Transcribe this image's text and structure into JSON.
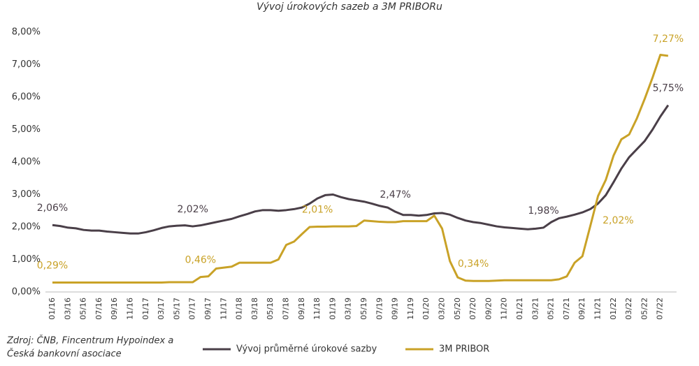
{
  "chart_data": {
    "type": "line",
    "title": "Vývoj úrokových sazeb a 3M PRIBORu",
    "source": [
      "Zdroj: ČNB, Fincentrum Hypoindex a",
      "Česká bankovní asociace"
    ],
    "categories": [
      "01/16",
      null,
      "03/16",
      null,
      "05/16",
      null,
      "07/16",
      null,
      "09/16",
      null,
      "11/16",
      null,
      "01/17",
      null,
      "03/17",
      null,
      "05/17",
      null,
      "07/17",
      null,
      "09/17",
      null,
      "11/17",
      null,
      "01/18",
      null,
      "03/18",
      null,
      "05/18",
      null,
      "07/18",
      null,
      "09/18",
      null,
      "11/18",
      null,
      "01/19",
      null,
      "03/19",
      null,
      "05/19",
      null,
      "07/19",
      null,
      "09/19",
      null,
      "11/19",
      null,
      "01/20",
      null,
      "03/20",
      null,
      "05/20",
      null,
      "07/20",
      null,
      "09/20",
      null,
      "11/20",
      null,
      "01/21",
      null,
      "03/21",
      null,
      "05/21",
      null,
      "07/21",
      null,
      "09/21",
      null,
      "11/21",
      null,
      "01/22",
      null,
      "03/22",
      null,
      "05/22",
      null,
      "07/22",
      null
    ],
    "series": [
      {
        "name": "Vývoj průměrné úrokové sazby",
        "color": "#4a3f48",
        "values": [
          2.06,
          2.03,
          1.98,
          1.96,
          1.91,
          1.89,
          1.89,
          1.86,
          1.84,
          1.82,
          1.8,
          1.8,
          1.84,
          1.9,
          1.97,
          2.02,
          2.04,
          2.05,
          2.02,
          2.05,
          2.1,
          2.15,
          2.2,
          2.25,
          2.33,
          2.4,
          2.48,
          2.52,
          2.52,
          2.5,
          2.52,
          2.55,
          2.6,
          2.72,
          2.88,
          2.98,
          3.0,
          2.92,
          2.86,
          2.82,
          2.78,
          2.72,
          2.65,
          2.6,
          2.47,
          2.37,
          2.37,
          2.35,
          2.37,
          2.42,
          2.43,
          2.38,
          2.28,
          2.2,
          2.15,
          2.12,
          2.07,
          2.02,
          1.99,
          1.97,
          1.95,
          1.93,
          1.95,
          1.98,
          2.15,
          2.27,
          2.32,
          2.38,
          2.45,
          2.55,
          2.72,
          2.98,
          3.38,
          3.8,
          4.15,
          4.4,
          4.65,
          5.0,
          5.4,
          5.75
        ],
        "value_labels": [
          "2,06%",
          null,
          null,
          null,
          null,
          null,
          null,
          null,
          null,
          null,
          null,
          null,
          null,
          null,
          null,
          null,
          null,
          null,
          "2,02%",
          null,
          null,
          null,
          null,
          null,
          null,
          null,
          null,
          null,
          null,
          null,
          null,
          null,
          null,
          null,
          null,
          null,
          null,
          null,
          null,
          null,
          null,
          null,
          null,
          null,
          "2,47%",
          null,
          null,
          null,
          null,
          null,
          null,
          null,
          null,
          null,
          null,
          null,
          null,
          null,
          null,
          null,
          null,
          null,
          null,
          "1,98%",
          null,
          null,
          null,
          null,
          null,
          null,
          null,
          null,
          null,
          null,
          null,
          null,
          null,
          null,
          null,
          "5,75%"
        ]
      },
      {
        "name": "3M PRIBOR",
        "color": "#c9a227",
        "values": [
          0.29,
          0.29,
          0.29,
          0.29,
          0.29,
          0.29,
          0.29,
          0.29,
          0.29,
          0.29,
          0.29,
          0.29,
          0.29,
          0.29,
          0.29,
          0.3,
          0.3,
          0.3,
          0.3,
          0.46,
          0.48,
          0.72,
          0.75,
          0.78,
          0.9,
          0.9,
          0.9,
          0.9,
          0.9,
          1.0,
          1.45,
          1.55,
          1.78,
          2.0,
          2.01,
          2.01,
          2.02,
          2.02,
          2.02,
          2.03,
          2.2,
          2.18,
          2.16,
          2.15,
          2.15,
          2.18,
          2.18,
          2.18,
          2.18,
          2.35,
          1.95,
          0.95,
          0.45,
          0.35,
          0.34,
          0.34,
          0.34,
          0.35,
          0.36,
          0.36,
          0.36,
          0.36,
          0.36,
          0.36,
          0.36,
          0.39,
          0.48,
          0.9,
          1.1,
          2.02,
          2.95,
          3.45,
          4.2,
          4.7,
          4.85,
          5.35,
          5.95,
          6.6,
          7.3,
          7.27
        ],
        "value_labels": [
          "0,29%",
          null,
          null,
          null,
          null,
          null,
          null,
          null,
          null,
          null,
          null,
          null,
          null,
          null,
          null,
          null,
          null,
          null,
          null,
          "0,46%",
          null,
          null,
          null,
          null,
          null,
          null,
          null,
          null,
          null,
          null,
          null,
          null,
          null,
          null,
          "2,01%",
          null,
          null,
          null,
          null,
          null,
          null,
          null,
          null,
          null,
          null,
          null,
          null,
          null,
          null,
          null,
          null,
          null,
          null,
          null,
          "0,34%",
          null,
          null,
          null,
          null,
          null,
          null,
          null,
          null,
          null,
          null,
          null,
          null,
          null,
          null,
          "2,02%",
          null,
          null,
          null,
          null,
          null,
          null,
          null,
          null,
          null,
          "7,27%"
        ]
      }
    ],
    "ylim": [
      0,
      8
    ],
    "yticks": [
      {
        "value": 0,
        "label": "0,00%"
      },
      {
        "value": 1,
        "label": "1,00%"
      },
      {
        "value": 2,
        "label": "2,00%"
      },
      {
        "value": 3,
        "label": "3,00%"
      },
      {
        "value": 4,
        "label": "4,00%"
      },
      {
        "value": 5,
        "label": "5,00%"
      },
      {
        "value": 6,
        "label": "6,00%"
      },
      {
        "value": 7,
        "label": "7,00%"
      },
      {
        "value": 8,
        "label": "8,00%"
      }
    ],
    "grid": false
  }
}
